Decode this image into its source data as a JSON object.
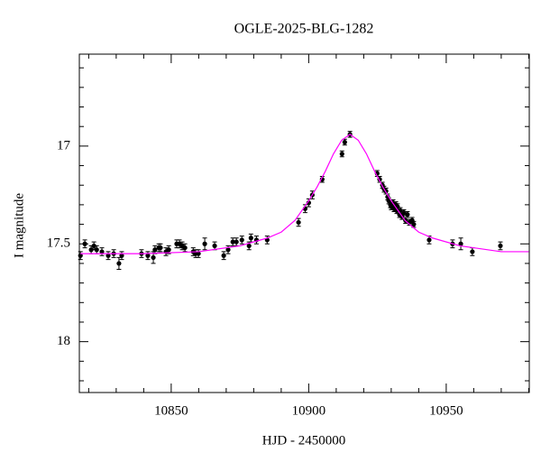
{
  "chart_data": {
    "type": "lightcurve",
    "title": "OGLE-2025-BLG-1282",
    "x_label": "HJD - 2450000",
    "y_label": "I magnitude",
    "xlim": [
      10816.6,
      10980.2
    ],
    "ylim": [
      18.26,
      16.53
    ],
    "xticks": [
      10850,
      10900,
      10950
    ],
    "yticks": [
      17,
      17.5,
      18
    ],
    "xminor_ticks": [
      10820,
      10830,
      10840,
      10860,
      10870,
      10880,
      10890,
      10910,
      10920,
      10930,
      10940,
      10960,
      10970,
      10980
    ],
    "yminor_ticks": [
      16.6,
      16.7,
      16.8,
      16.9,
      17.1,
      17.2,
      17.3,
      17.4,
      17.6,
      17.7,
      17.8,
      17.9,
      18.1,
      18.2
    ],
    "series": [
      {
        "color": "#000000",
        "x": [
          10817,
          10818.6,
          10820.9,
          10821.9,
          10822.9,
          10824.8,
          10827.1,
          10829.1,
          10831,
          10832,
          10839.2,
          10841.5,
          10843.5,
          10844.1,
          10845.5,
          10846.1,
          10848.1,
          10849.1,
          10852,
          10853,
          10854,
          10855,
          10858,
          10858.9,
          10859.9,
          10862.2,
          10865.8,
          10869.1,
          10870.7,
          10872.4,
          10873.7,
          10875.7,
          10878.3,
          10879,
          10881,
          10884.9,
          10896.3,
          10898.7,
          10900,
          10901.3,
          10904.9,
          10912.1,
          10913.1,
          10915,
          10924.9,
          10925.8,
          10926.8,
          10927.4,
          10928.1,
          10928.7,
          10929.1,
          10929.7,
          10930,
          10930.7,
          10931,
          10931.7,
          10932,
          10932.3,
          10933,
          10933.3,
          10933.9,
          10934.6,
          10935.2,
          10935.9,
          10936.6,
          10937.6,
          10938.2,
          10943.8,
          10952.3,
          10955.3,
          10959.5,
          10969.7
        ],
        "values": [
          17.56,
          17.5,
          17.53,
          17.51,
          17.53,
          17.54,
          17.56,
          17.55,
          17.6,
          17.56,
          17.55,
          17.56,
          17.57,
          17.53,
          17.52,
          17.52,
          17.54,
          17.53,
          17.5,
          17.5,
          17.51,
          17.52,
          17.54,
          17.55,
          17.55,
          17.5,
          17.51,
          17.56,
          17.53,
          17.49,
          17.49,
          17.48,
          17.51,
          17.47,
          17.48,
          17.48,
          17.39,
          17.32,
          17.29,
          17.25,
          17.17,
          17.04,
          16.98,
          16.94,
          17.14,
          17.17,
          17.2,
          17.22,
          17.23,
          17.26,
          17.28,
          17.3,
          17.31,
          17.29,
          17.32,
          17.3,
          17.33,
          17.31,
          17.35,
          17.33,
          17.36,
          17.34,
          17.38,
          17.35,
          17.39,
          17.38,
          17.4,
          17.48,
          17.5,
          17.5,
          17.54,
          17.51
        ],
        "errors": [
          0.02,
          0.02,
          0.02,
          0.02,
          0.02,
          0.02,
          0.02,
          0.02,
          0.03,
          0.02,
          0.02,
          0.02,
          0.03,
          0.02,
          0.02,
          0.02,
          0.02,
          0.02,
          0.02,
          0.02,
          0.02,
          0.02,
          0.02,
          0.02,
          0.02,
          0.03,
          0.02,
          0.02,
          0.02,
          0.02,
          0.02,
          0.02,
          0.02,
          0.02,
          0.02,
          0.02,
          0.02,
          0.02,
          0.02,
          0.02,
          0.015,
          0.015,
          0.015,
          0.015,
          0.015,
          0.015,
          0.015,
          0.015,
          0.015,
          0.015,
          0.015,
          0.015,
          0.015,
          0.015,
          0.015,
          0.015,
          0.015,
          0.015,
          0.015,
          0.015,
          0.015,
          0.015,
          0.015,
          0.015,
          0.015,
          0.015,
          0.015,
          0.02,
          0.02,
          0.03,
          0.02,
          0.02
        ]
      },
      {
        "color": "#ff00ff",
        "kind": "line",
        "x": [
          10817,
          10840,
          10860,
          10875,
          10885,
          10890,
          10895,
          10900,
          10903,
          10906,
          10909,
          10912,
          10915,
          10918,
          10921,
          10924,
          10927,
          10930,
          10935,
          10940,
          10945,
          10955,
          10970,
          10980
        ],
        "values": [
          17.55,
          17.55,
          17.54,
          17.51,
          17.47,
          17.44,
          17.38,
          17.28,
          17.21,
          17.13,
          17.04,
          16.97,
          16.94,
          16.97,
          17.04,
          17.13,
          17.21,
          17.28,
          17.38,
          17.44,
          17.47,
          17.51,
          17.54,
          17.54
        ]
      }
    ]
  }
}
